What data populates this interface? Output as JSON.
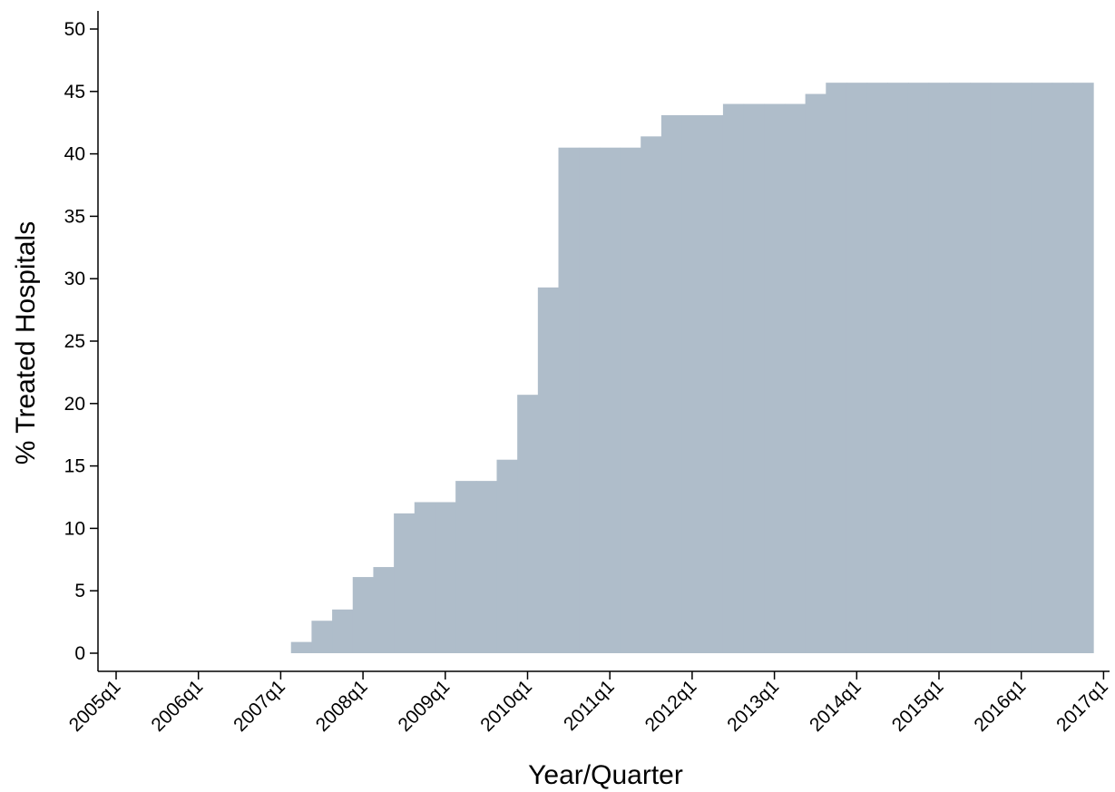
{
  "chart_data": {
    "type": "bar",
    "title": "",
    "xlabel": "Year/Quarter",
    "ylabel": "% Treated Hospitals",
    "ylim": [
      0,
      50
    ],
    "xlim": [
      "2005q1",
      "2017q1"
    ],
    "yticks": [
      0,
      5,
      10,
      15,
      20,
      25,
      30,
      35,
      40,
      45,
      50
    ],
    "xticks": [
      "2005q1",
      "2006q1",
      "2007q1",
      "2008q1",
      "2009q1",
      "2010q1",
      "2011q1",
      "2012q1",
      "2013q1",
      "2014q1",
      "2015q1",
      "2016q1",
      "2017q1"
    ],
    "grid": false,
    "legend": "none",
    "bar_color": "#afbdca",
    "categories": [
      "2007q2",
      "2007q3",
      "2007q4",
      "2008q1",
      "2008q2",
      "2008q3",
      "2008q4",
      "2009q1",
      "2009q2",
      "2009q3",
      "2009q4",
      "2010q1",
      "2010q2",
      "2010q3",
      "2010q4",
      "2011q1",
      "2011q2",
      "2011q3",
      "2011q4",
      "2012q1",
      "2012q2",
      "2012q3",
      "2012q4",
      "2013q1",
      "2013q2",
      "2013q3",
      "2013q4",
      "2014q1",
      "2014q2",
      "2014q3",
      "2014q4",
      "2015q1",
      "2015q2",
      "2015q3",
      "2015q4",
      "2016q1",
      "2016q2",
      "2016q3",
      "2016q4"
    ],
    "values": [
      0.9,
      2.6,
      3.5,
      6.1,
      6.9,
      11.2,
      12.1,
      12.1,
      13.8,
      13.8,
      15.5,
      20.7,
      29.3,
      40.5,
      40.5,
      40.5,
      40.5,
      41.4,
      43.1,
      43.1,
      43.1,
      44.0,
      44.0,
      44.0,
      44.0,
      44.8,
      45.7,
      45.7,
      45.7,
      45.7,
      45.7,
      45.7,
      45.7,
      45.7,
      45.7,
      45.7,
      45.7,
      45.7,
      45.7
    ]
  }
}
